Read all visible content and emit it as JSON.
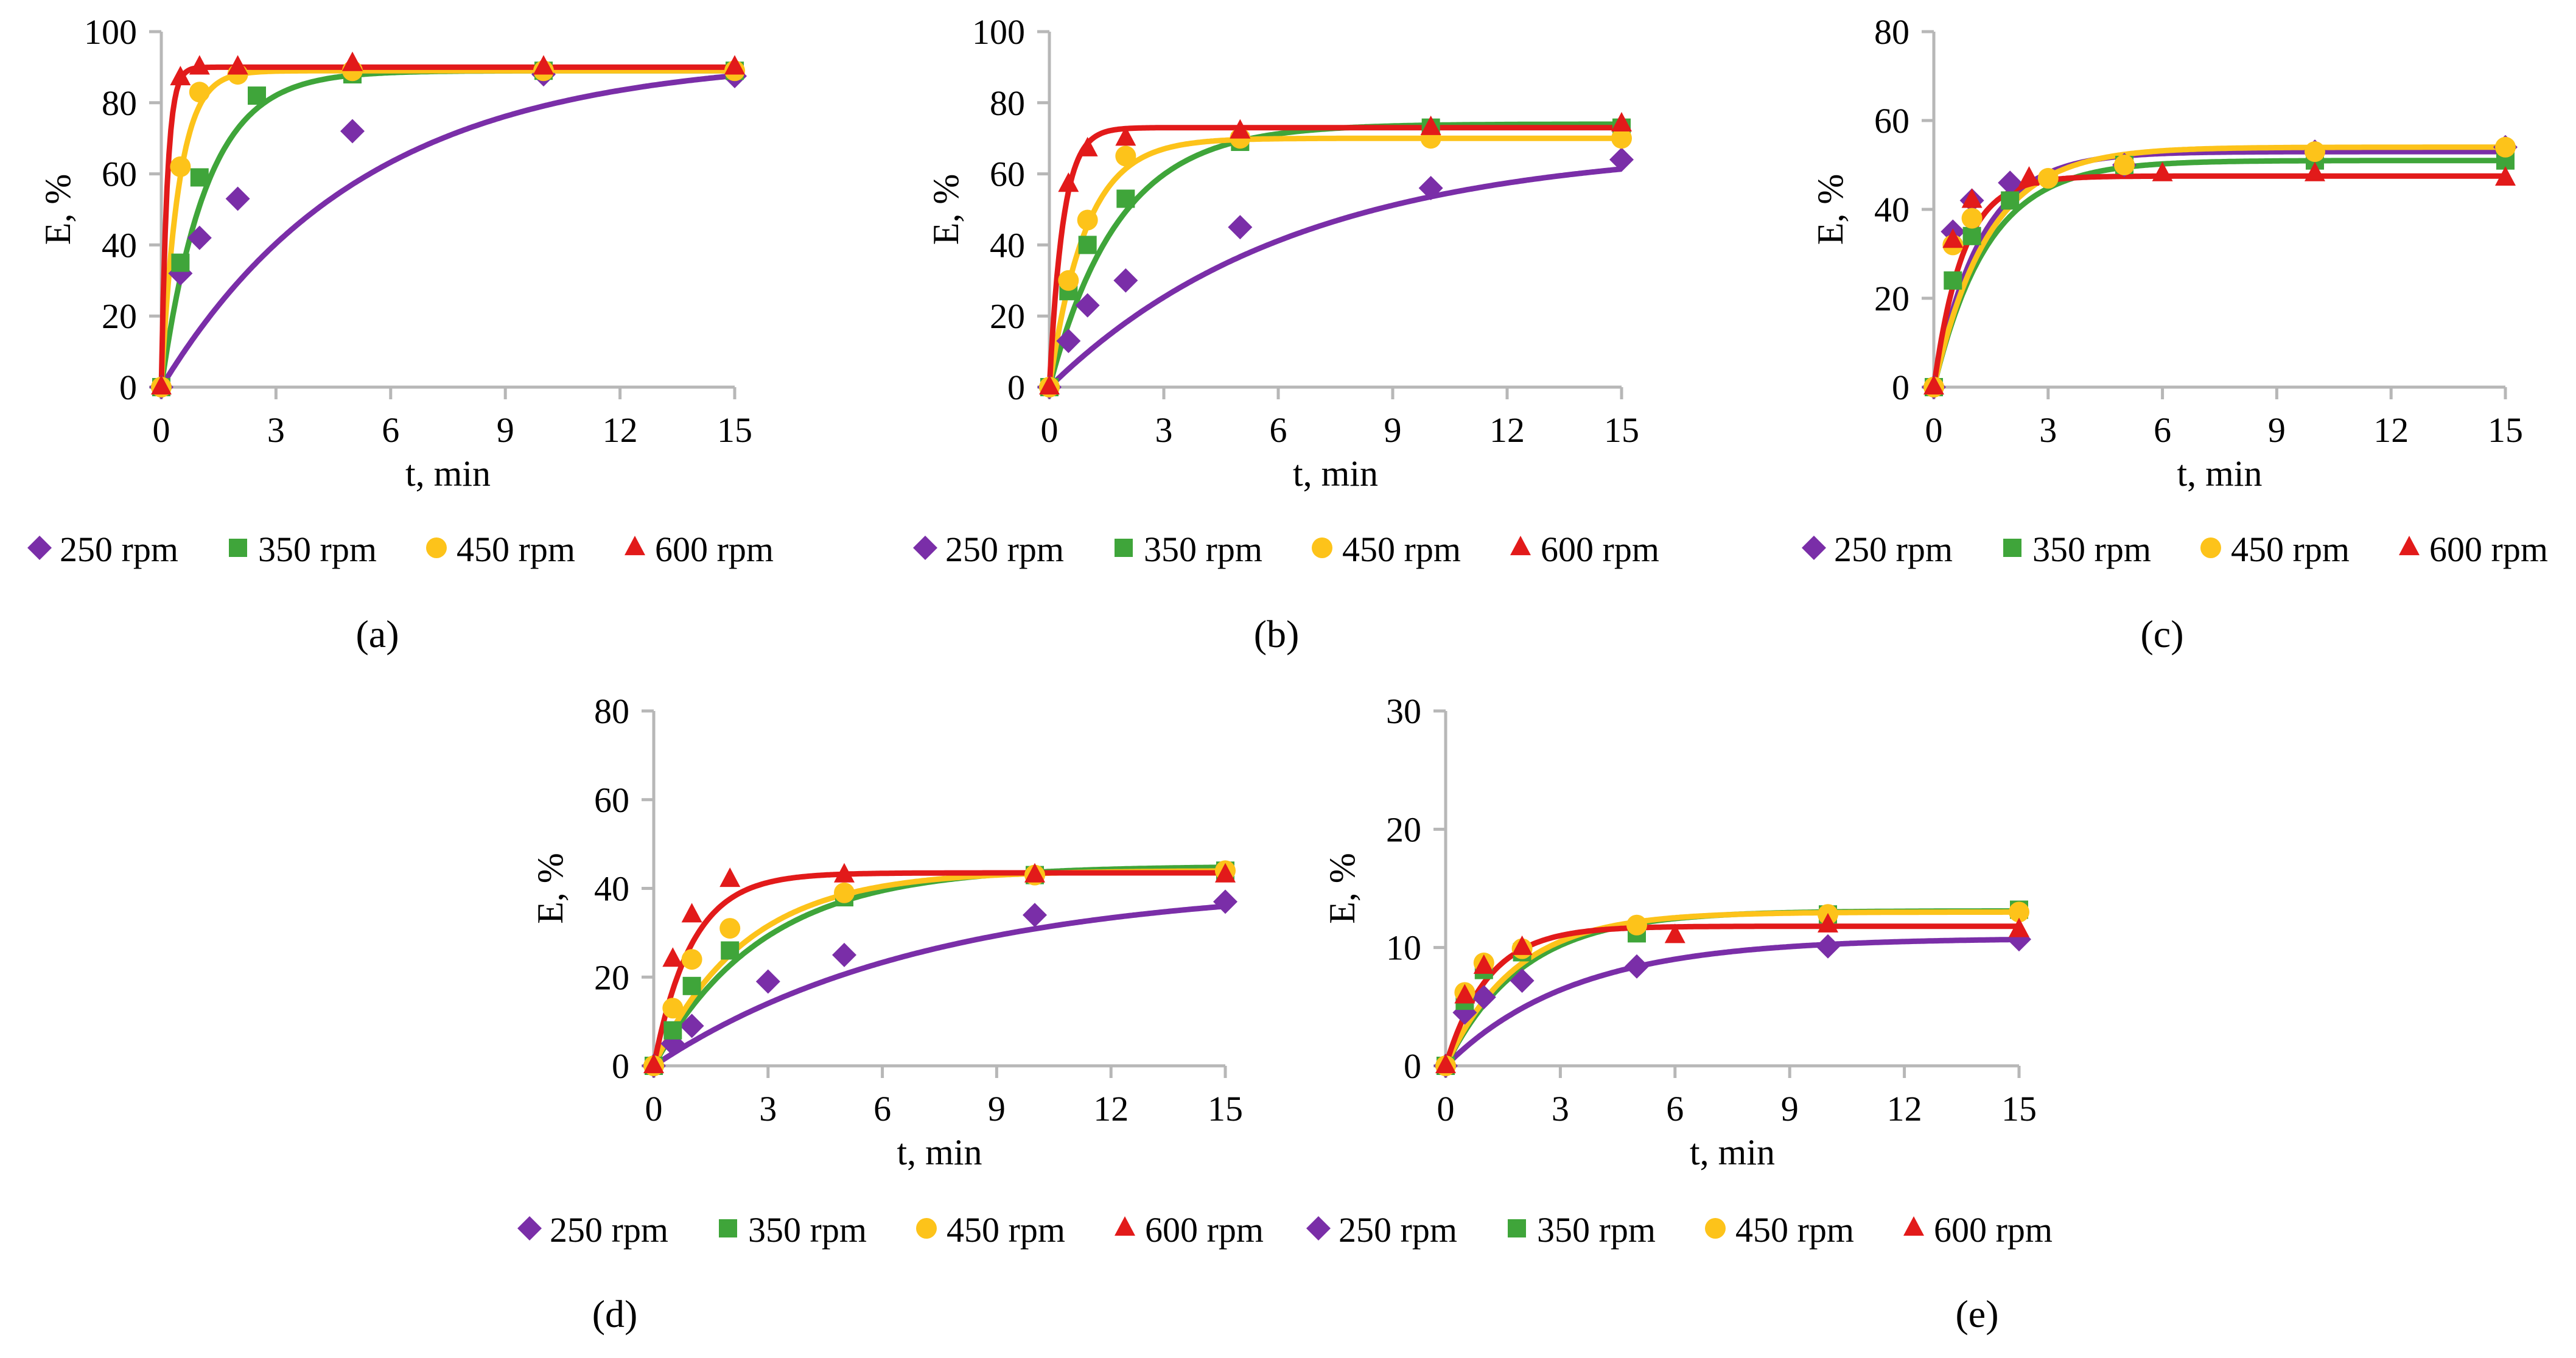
{
  "legend_labels": [
    "250 rpm",
    "350 rpm",
    "450 rpm",
    "600 rpm"
  ],
  "colors": {
    "250 rpm": "#7a2ea8",
    "350 rpm": "#3fa53a",
    "450 rpm": "#fdc31a",
    "600 rpm": "#e21a1a",
    "axis": "#b7b7b7"
  },
  "markers": {
    "250 rpm": "diamond",
    "350 rpm": "square",
    "450 rpm": "circle",
    "600 rpm": "triangle"
  },
  "chart_data": [
    {
      "id": "a",
      "panel_label": "(a)",
      "type": "scatter",
      "xlabel": "t, min",
      "ylabel": "E, %",
      "xlim": [
        0,
        15
      ],
      "ylim": [
        0,
        100
      ],
      "xticks": [
        "0",
        "3",
        "6",
        "9",
        "12",
        "15"
      ],
      "yticks": [
        "0",
        "20",
        "40",
        "60",
        "80",
        "100"
      ],
      "series": [
        {
          "name": "250 rpm",
          "x": [
            0,
            0.5,
            1,
            2,
            5,
            10,
            15
          ],
          "y": [
            0,
            32,
            42,
            53,
            72,
            88,
            87.5
          ],
          "fit": {
            "emax": 93,
            "k": 0.19
          }
        },
        {
          "name": "350 rpm",
          "x": [
            0,
            0.5,
            1,
            2.5,
            5,
            10,
            15
          ],
          "y": [
            0,
            35,
            59,
            82,
            88,
            89,
            89
          ],
          "fit": {
            "emax": 89,
            "k": 0.85
          }
        },
        {
          "name": "450 rpm",
          "x": [
            0,
            0.5,
            1,
            2,
            5,
            10,
            15
          ],
          "y": [
            0,
            62,
            83,
            88,
            89,
            89,
            89
          ],
          "fit": {
            "emax": 89,
            "k": 2.2
          }
        },
        {
          "name": "600 rpm",
          "x": [
            0,
            0.5,
            1,
            2,
            5,
            10,
            15
          ],
          "y": [
            0,
            87,
            90,
            90,
            91,
            90,
            90
          ],
          "fit": {
            "emax": 90,
            "k": 6.5
          }
        }
      ]
    },
    {
      "id": "b",
      "panel_label": "(b)",
      "type": "scatter",
      "xlabel": "t, min",
      "ylabel": "E, %",
      "xlim": [
        0,
        15
      ],
      "ylim": [
        0,
        100
      ],
      "xticks": [
        "0",
        "3",
        "6",
        "9",
        "12",
        "15"
      ],
      "yticks": [
        "0",
        "20",
        "40",
        "60",
        "80",
        "100"
      ],
      "series": [
        {
          "name": "250 rpm",
          "x": [
            0,
            0.5,
            1,
            2,
            5,
            10,
            15
          ],
          "y": [
            0,
            13,
            23,
            30,
            45,
            56,
            64
          ],
          "fit": {
            "emax": 68,
            "k": 0.155
          }
        },
        {
          "name": "350 rpm",
          "x": [
            0,
            0.5,
            1,
            2,
            5,
            10,
            15
          ],
          "y": [
            0,
            27,
            40,
            53,
            69,
            73,
            73
          ],
          "fit": {
            "emax": 74,
            "k": 0.55
          }
        },
        {
          "name": "450 rpm",
          "x": [
            0,
            0.5,
            1,
            2,
            5,
            10,
            15
          ],
          "y": [
            0,
            30,
            47,
            65,
            70,
            70,
            70
          ],
          "fit": {
            "emax": 70,
            "k": 1.05
          }
        },
        {
          "name": "600 rpm",
          "x": [
            0,
            0.5,
            1,
            2,
            5,
            10,
            15
          ],
          "y": [
            0,
            57,
            67,
            70,
            72,
            73,
            74
          ],
          "fit": {
            "emax": 73,
            "k": 2.8
          }
        }
      ]
    },
    {
      "id": "c",
      "panel_label": "(c)",
      "type": "scatter",
      "xlabel": "t, min",
      "ylabel": "E, %",
      "xlim": [
        0,
        15
      ],
      "ylim": [
        0,
        80
      ],
      "xticks": [
        "0",
        "3",
        "6",
        "9",
        "12",
        "15"
      ],
      "yticks": [
        "0",
        "20",
        "40",
        "60",
        "80"
      ],
      "series": [
        {
          "name": "250 rpm",
          "x": [
            0,
            0.5,
            1,
            2,
            5,
            10,
            15
          ],
          "y": [
            0,
            35,
            42,
            46,
            50,
            53,
            54
          ],
          "fit": {
            "emax": 53,
            "k": 0.8
          }
        },
        {
          "name": "350 rpm",
          "x": [
            0,
            0.5,
            1,
            2,
            5,
            10,
            15
          ],
          "y": [
            0,
            24,
            34,
            42,
            50,
            51,
            51
          ],
          "fit": {
            "emax": 51,
            "k": 0.7
          }
        },
        {
          "name": "450 rpm",
          "x": [
            0,
            0.5,
            1,
            3,
            5,
            10,
            15
          ],
          "y": [
            0,
            32,
            38,
            47,
            50,
            53,
            54
          ],
          "fit": {
            "emax": 54,
            "k": 0.7
          }
        },
        {
          "name": "600 rpm",
          "x": [
            0,
            0.5,
            1,
            2.5,
            6,
            10,
            15
          ],
          "y": [
            0,
            33,
            42,
            47,
            48,
            48,
            47
          ],
          "fit": {
            "emax": 47.5,
            "k": 1.3
          }
        }
      ]
    },
    {
      "id": "d",
      "panel_label": "(d)",
      "type": "scatter",
      "xlabel": "t, min",
      "ylabel": "E, %",
      "xlim": [
        0,
        15
      ],
      "ylim": [
        0,
        80
      ],
      "xticks": [
        "0",
        "3",
        "6",
        "9",
        "12",
        "15"
      ],
      "yticks": [
        "0",
        "20",
        "40",
        "60",
        "80"
      ],
      "series": [
        {
          "name": "250 rpm",
          "x": [
            0,
            0.5,
            1,
            3,
            5,
            10,
            15
          ],
          "y": [
            0,
            5,
            9,
            19,
            25,
            34,
            37
          ],
          "fit": {
            "emax": 41,
            "k": 0.14
          }
        },
        {
          "name": "350 rpm",
          "x": [
            0,
            0.5,
            1,
            2,
            5,
            10,
            15
          ],
          "y": [
            0,
            8,
            18,
            26,
            38,
            43,
            44
          ],
          "fit": {
            "emax": 45,
            "k": 0.35
          }
        },
        {
          "name": "450 rpm",
          "x": [
            0,
            0.5,
            1,
            2,
            5,
            10,
            15
          ],
          "y": [
            0,
            13,
            24,
            31,
            39,
            43,
            44
          ],
          "fit": {
            "emax": 44,
            "k": 0.42
          }
        },
        {
          "name": "600 rpm",
          "x": [
            0,
            0.5,
            1,
            2,
            5,
            10,
            15
          ],
          "y": [
            0,
            24,
            34,
            42,
            43,
            43,
            43
          ],
          "fit": {
            "emax": 43.5,
            "k": 1.0
          }
        }
      ]
    },
    {
      "id": "e",
      "panel_label": "(e)",
      "type": "scatter",
      "xlabel": "t, min",
      "ylabel": "E, %",
      "xlim": [
        0,
        15
      ],
      "ylim": [
        0,
        30
      ],
      "xticks": [
        "0",
        "3",
        "6",
        "9",
        "12",
        "15"
      ],
      "yticks": [
        "0",
        "10",
        "20",
        "30"
      ],
      "series": [
        {
          "name": "250 rpm",
          "x": [
            0,
            0.5,
            1,
            2,
            5,
            10,
            15
          ],
          "y": [
            0,
            4.5,
            5.8,
            7.2,
            8.4,
            10.1,
            10.7
          ],
          "fit": {
            "emax": 10.8,
            "k": 0.3
          }
        },
        {
          "name": "350 rpm",
          "x": [
            0,
            0.5,
            1,
            2,
            5,
            10,
            15
          ],
          "y": [
            0,
            5.5,
            8.1,
            9.6,
            11.2,
            12.8,
            13.2
          ],
          "fit": {
            "emax": 13.1,
            "k": 0.5
          }
        },
        {
          "name": "450 rpm",
          "x": [
            0,
            0.5,
            1,
            2,
            5,
            10,
            15
          ],
          "y": [
            0,
            6.2,
            8.7,
            9.9,
            11.9,
            12.8,
            13.0
          ],
          "fit": {
            "emax": 13.0,
            "k": 0.55
          }
        },
        {
          "name": "600 rpm",
          "x": [
            0,
            0.5,
            1,
            2,
            6,
            10,
            15
          ],
          "y": [
            0,
            5.9,
            8.4,
            10.0,
            11.0,
            11.9,
            11.5
          ],
          "fit": {
            "emax": 11.8,
            "k": 0.9
          }
        }
      ]
    }
  ]
}
